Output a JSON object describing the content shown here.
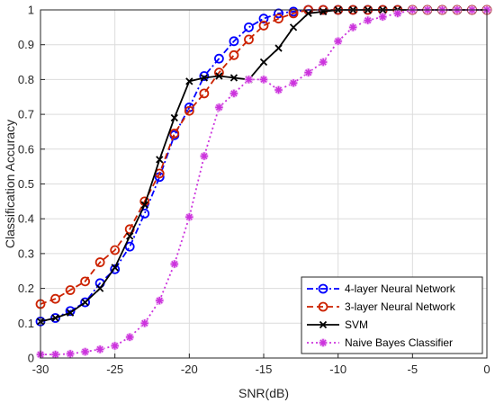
{
  "chart_data": {
    "type": "line",
    "xlabel": "SNR(dB)",
    "ylabel": "Classification Accuracy",
    "xlim": [
      -30,
      0
    ],
    "ylim": [
      0,
      1
    ],
    "xticks": [
      -30,
      -25,
      -20,
      -15,
      -10,
      -5,
      0
    ],
    "xtick_labels": [
      "-30",
      "-25",
      "-20",
      "-15",
      "-10",
      "-5",
      "0"
    ],
    "yticks": [
      0,
      0.1,
      0.2,
      0.3,
      0.4,
      0.5,
      0.6,
      0.7,
      0.8,
      0.9,
      1
    ],
    "ytick_labels": [
      "0",
      "0.1",
      "0.2",
      "0.3",
      "0.4",
      "0.5",
      "0.6",
      "0.7",
      "0.8",
      "0.9",
      "1"
    ],
    "grid": true,
    "legend_position": "bottom-right",
    "x": [
      -30,
      -29,
      -28,
      -27,
      -26,
      -25,
      -24,
      -23,
      -22,
      -21,
      -20,
      -19,
      -18,
      -17,
      -16,
      -15,
      -14,
      -13,
      -12,
      -11,
      -10,
      -9,
      -8,
      -7,
      -6,
      -5,
      -4,
      -3,
      -2,
      -1,
      0
    ],
    "series": [
      {
        "name": "4-layer Neural Network",
        "color": "#0000ff",
        "dash": "dashdot",
        "marker": "circle",
        "values": [
          0.105,
          0.115,
          0.135,
          0.16,
          0.215,
          0.255,
          0.32,
          0.415,
          0.52,
          0.64,
          0.72,
          0.81,
          0.86,
          0.91,
          0.95,
          0.975,
          0.99,
          0.995,
          1,
          1,
          1,
          1,
          1,
          1,
          1,
          1,
          1,
          1,
          1,
          1,
          1
        ]
      },
      {
        "name": "3-layer Neural Network",
        "color": "#cc2200",
        "dash": "dashed",
        "marker": "circle",
        "values": [
          0.155,
          0.17,
          0.195,
          0.22,
          0.275,
          0.31,
          0.37,
          0.45,
          0.53,
          0.645,
          0.71,
          0.76,
          0.82,
          0.87,
          0.915,
          0.955,
          0.975,
          0.99,
          1,
          1,
          1,
          1,
          1,
          1,
          1,
          1,
          1,
          1,
          1,
          1,
          1
        ]
      },
      {
        "name": "SVM",
        "color": "#000000",
        "dash": "solid",
        "marker": "x",
        "values": [
          0.105,
          0.115,
          0.13,
          0.16,
          0.2,
          0.26,
          0.35,
          0.44,
          0.57,
          0.69,
          0.795,
          0.805,
          0.81,
          0.805,
          0.8,
          0.85,
          0.89,
          0.95,
          0.99,
          0.995,
          1,
          1,
          1,
          1,
          1,
          1,
          1,
          1,
          1,
          1,
          1
        ]
      },
      {
        "name": "Naive Bayes Classifier",
        "color": "#cc33dd",
        "dash": "dotted",
        "marker": "star",
        "values": [
          0.01,
          0.01,
          0.012,
          0.018,
          0.025,
          0.035,
          0.06,
          0.1,
          0.165,
          0.27,
          0.405,
          0.58,
          0.72,
          0.76,
          0.8,
          0.8,
          0.77,
          0.79,
          0.82,
          0.85,
          0.91,
          0.95,
          0.97,
          0.98,
          0.99,
          1,
          1,
          1,
          1,
          1,
          1
        ]
      }
    ]
  }
}
